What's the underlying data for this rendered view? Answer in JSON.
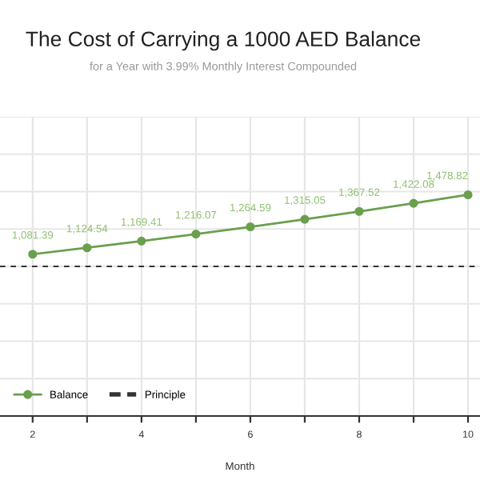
{
  "chart_data": {
    "type": "line",
    "title": "The Cost of Carrying a 1000 AED Balance",
    "subtitle": "for a Year with 3.99% Monthly Interest Compounded",
    "xlabel": "Month",
    "x": [
      2,
      3,
      4,
      5,
      6,
      7,
      8,
      9,
      10
    ],
    "series": [
      {
        "name": "Balance",
        "color": "#6a9f4e",
        "values": [
          1081.39,
          1124.54,
          1169.41,
          1216.07,
          1264.59,
          1315.05,
          1367.52,
          1422.08,
          1478.82
        ],
        "value_labels": [
          "1,081.39",
          "1,124.54",
          "1,169.41",
          "1,216.07",
          "1,264.59",
          "1,315.05",
          "1,367.52",
          "1,422.08",
          "1,478.82"
        ]
      }
    ],
    "ref_lines": [
      {
        "axis": "y",
        "value": 1000,
        "label": "Principle",
        "color": "#333333",
        "line_style": "dashed"
      }
    ],
    "xlim": [
      1.4,
      10.22
    ],
    "xticks": [
      2,
      {
        "value": 3,
        "label": null
      },
      4,
      {
        "value": 5,
        "label": null
      },
      6,
      {
        "value": 7,
        "label": null
      },
      8,
      {
        "value": 9,
        "label": null
      },
      10
    ],
    "ylim": [
      0,
      2000
    ],
    "yticks": [
      {
        "value": 0,
        "label": null
      },
      {
        "value": 250,
        "label": null
      },
      {
        "value": 500,
        "label": null
      },
      {
        "value": 750,
        "label": null
      },
      {
        "value": 1000,
        "label": null
      },
      {
        "value": 1250,
        "label": null
      },
      {
        "value": 1500,
        "label": null
      },
      {
        "value": 1750,
        "label": null
      },
      {
        "value": 2000,
        "label": null
      }
    ],
    "tick_labels": "x",
    "grid": true,
    "legend": "bottom left",
    "marker": "circle",
    "line_style": "solid"
  }
}
